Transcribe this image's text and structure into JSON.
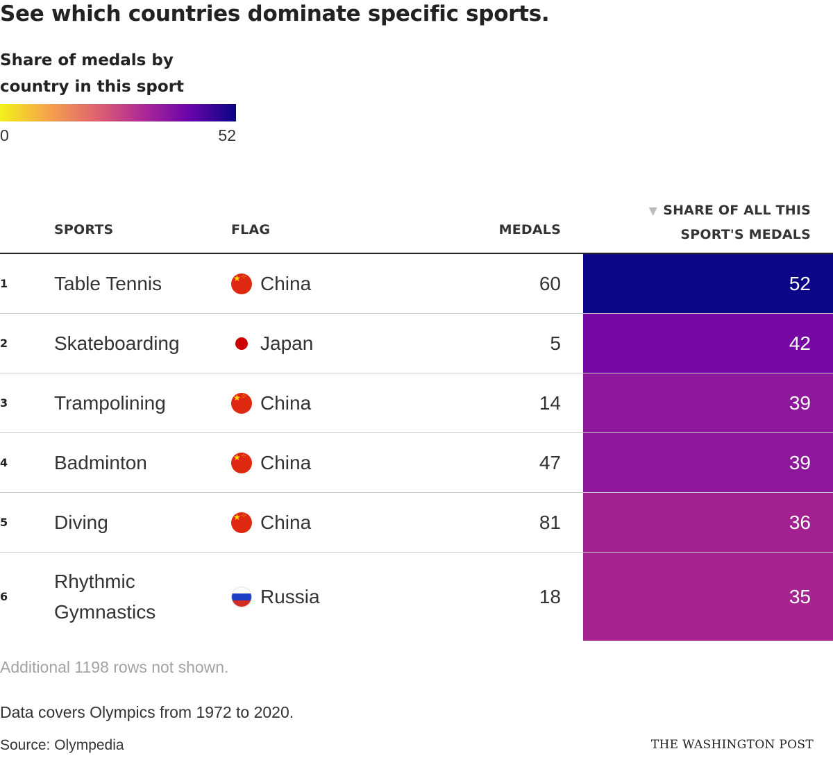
{
  "title": "See which countries dominate specific sports.",
  "legend": {
    "title": "Share of medals by country in this sport",
    "min_label": "0",
    "max_label": "52",
    "min": 0,
    "max": 52,
    "color_stops": [
      "#f2f21a",
      "#f5a54a",
      "#e0666e",
      "#b02a96",
      "#6a04a9",
      "#0a0583"
    ]
  },
  "headers": {
    "sports": "SPORTS",
    "flag": "FLAG",
    "medals": "MEDALS",
    "share": "SHARE OF ALL THIS SPORT'S MEDALS",
    "sort_icon": "triangle-down-icon"
  },
  "rows": [
    {
      "rank": "1",
      "sport": "Table Tennis",
      "country": "China",
      "flag": "china-flag-icon",
      "medals": "60",
      "share": "52",
      "color": "#0c0786"
    },
    {
      "rank": "2",
      "sport": "Skateboarding",
      "country": "Japan",
      "flag": "japan-flag-icon",
      "medals": "5",
      "share": "42",
      "color": "#7609a5"
    },
    {
      "rank": "3",
      "sport": "Trampolining",
      "country": "China",
      "flag": "china-flag-icon",
      "medals": "14",
      "share": "39",
      "color": "#8e189c"
    },
    {
      "rank": "4",
      "sport": "Badminton",
      "country": "China",
      "flag": "china-flag-icon",
      "medals": "47",
      "share": "39",
      "color": "#8e189c"
    },
    {
      "rank": "5",
      "sport": "Diving",
      "country": "China",
      "flag": "china-flag-icon",
      "medals": "81",
      "share": "36",
      "color": "#a2208f"
    },
    {
      "rank": "6",
      "sport": "Rhythmic Gymnastics",
      "country": "Russia",
      "flag": "russia-flag-icon",
      "medals": "18",
      "share": "35",
      "color": "#a72490"
    }
  ],
  "chart_data": {
    "type": "table",
    "title": "See which countries dominate specific sports.",
    "columns": [
      "",
      "SPORTS",
      "FLAG",
      "MEDALS",
      "SHARE OF ALL THIS SPORT'S MEDALS"
    ],
    "rows": [
      [
        "1",
        "Table Tennis",
        "China",
        60,
        52
      ],
      [
        "2",
        "Skateboarding",
        "Japan",
        5,
        42
      ],
      [
        "3",
        "Trampolining",
        "China",
        14,
        39
      ],
      [
        "4",
        "Badminton",
        "China",
        47,
        39
      ],
      [
        "5",
        "Diving",
        "China",
        81,
        36
      ],
      [
        "6",
        "Rhythmic Gymnastics",
        "Russia",
        18,
        35
      ]
    ],
    "sort": "SHARE OF ALL THIS SPORT'S MEDALS descending",
    "color_scale": {
      "column": "SHARE OF ALL THIS SPORT'S MEDALS",
      "min": 0,
      "max": 52
    }
  },
  "footer": {
    "note": "Additional 1198 rows not shown.",
    "caption": "Data covers Olympics from 1972 to 2020.",
    "source": "Source: Olympedia",
    "credit": "THE WASHINGTON POST"
  }
}
